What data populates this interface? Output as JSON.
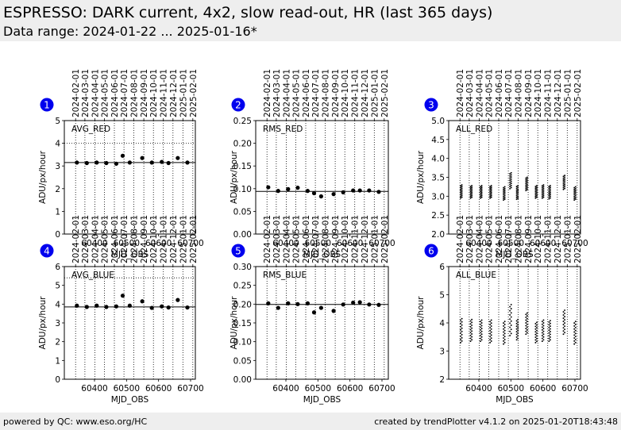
{
  "header": {
    "title": "ESPRESSO: DARK current, 4x2, slow read-out, HR (last 365 days)",
    "subtitle": "Data range: 2024-01-22 ... 2025-01-16*"
  },
  "footer": {
    "left": "powered by QC: www.eso.org/HC",
    "right": "created by trendPlotter v4.1.2 on 2025-01-20T18:43:48"
  },
  "colors": {
    "badge": "#0000ee",
    "points": "#000000",
    "background_band": "#eeeeee"
  },
  "date_ticks": [
    "2024-02-01",
    "2024-03-01",
    "2024-04-01",
    "2024-05-01",
    "2024-06-01",
    "2024-07-01",
    "2024-08-01",
    "2024-09-01",
    "2024-10-01",
    "2024-11-01",
    "2024-12-01",
    "2025-01-01",
    "2025-02-01"
  ],
  "chart_data": [
    {
      "id": "1",
      "type": "scatter",
      "label": "AVG_RED",
      "xlabel": "MJD_OBS",
      "ylabel": "ADU/px/hour",
      "xticks": [
        "60400",
        "60500",
        "60600",
        "60700"
      ],
      "yticks": [
        "0",
        "1",
        "2",
        "3",
        "4",
        "5"
      ],
      "ylim": [
        0,
        5
      ],
      "reference": 3.15,
      "upper_dotted": 4.0,
      "x": [
        60345,
        60376,
        60407,
        60437,
        60468,
        60488,
        60510,
        60549,
        60579,
        60610,
        60631,
        60660,
        60690
      ],
      "y": [
        3.15,
        3.13,
        3.15,
        3.13,
        3.1,
        3.45,
        3.15,
        3.35,
        3.15,
        3.18,
        3.13,
        3.35,
        3.15
      ]
    },
    {
      "id": "2",
      "type": "scatter",
      "label": "RMS_RED",
      "xlabel": "MJD_OBS",
      "ylabel": "ADU/px/hour",
      "xticks": [
        "60400",
        "60500",
        "60600",
        "60700"
      ],
      "yticks": [
        "0.00",
        "0.05",
        "0.10",
        "0.15",
        "0.20",
        "0.25"
      ],
      "ylim": [
        0,
        0.25
      ],
      "reference": 0.094,
      "x": [
        60345,
        60376,
        60407,
        60437,
        60468,
        60488,
        60510,
        60549,
        60579,
        60610,
        60631,
        60660,
        60690
      ],
      "y": [
        0.103,
        0.095,
        0.099,
        0.102,
        0.095,
        0.09,
        0.083,
        0.088,
        0.092,
        0.096,
        0.096,
        0.096,
        0.093
      ]
    },
    {
      "id": "3",
      "type": "scatter",
      "label": "ALL_RED",
      "xlabel": "MJD_OBS",
      "ylabel": "ADU/px/hour",
      "xticks": [
        "60400",
        "60500",
        "60600",
        "60700"
      ],
      "yticks": [
        "2.0",
        "2.5",
        "3.0",
        "3.5",
        "4.0",
        "4.5",
        "5.0"
      ],
      "ylim": [
        2.0,
        5.0
      ],
      "columns": [
        {
          "x": 60345,
          "min": 2.95,
          "max": 3.3
        },
        {
          "x": 60376,
          "min": 2.95,
          "max": 3.28
        },
        {
          "x": 60407,
          "min": 2.95,
          "max": 3.28
        },
        {
          "x": 60437,
          "min": 2.95,
          "max": 3.28
        },
        {
          "x": 60479,
          "min": 2.9,
          "max": 3.25
        },
        {
          "x": 60499,
          "min": 3.2,
          "max": 3.62
        },
        {
          "x": 60520,
          "min": 2.92,
          "max": 3.28
        },
        {
          "x": 60549,
          "min": 3.15,
          "max": 3.5
        },
        {
          "x": 60579,
          "min": 2.95,
          "max": 3.28
        },
        {
          "x": 60600,
          "min": 2.95,
          "max": 3.3
        },
        {
          "x": 60621,
          "min": 2.93,
          "max": 3.28
        },
        {
          "x": 60666,
          "min": 3.18,
          "max": 3.55
        },
        {
          "x": 60700,
          "min": 2.9,
          "max": 3.25
        }
      ]
    },
    {
      "id": "4",
      "type": "scatter",
      "label": "AVG_BLUE",
      "xlabel": "MJD_OBS",
      "ylabel": "ADU/px/hour",
      "xticks": [
        "60400",
        "60500",
        "60600",
        "60700"
      ],
      "yticks": [
        "0",
        "1",
        "2",
        "3",
        "4",
        "5",
        "6"
      ],
      "ylim": [
        0,
        6
      ],
      "reference": 3.85,
      "upper_dotted": 5.4,
      "x": [
        60345,
        60376,
        60407,
        60437,
        60468,
        60488,
        60510,
        60549,
        60579,
        60610,
        60631,
        60660,
        60690
      ],
      "y": [
        3.92,
        3.85,
        3.92,
        3.85,
        3.88,
        4.45,
        3.92,
        4.15,
        3.8,
        3.88,
        3.82,
        4.22,
        3.82
      ]
    },
    {
      "id": "5",
      "type": "scatter",
      "label": "RMS_BLUE",
      "xlabel": "MJD_OBS",
      "ylabel": "ADU/px/hour",
      "xticks": [
        "60400",
        "60500",
        "60600",
        "60700"
      ],
      "yticks": [
        "0.00",
        "0.05",
        "0.10",
        "0.15",
        "0.20",
        "0.25",
        "0.30"
      ],
      "ylim": [
        0,
        0.3
      ],
      "reference": 0.199,
      "x": [
        60345,
        60376,
        60407,
        60437,
        60468,
        60488,
        60510,
        60549,
        60579,
        60610,
        60631,
        60660,
        60690
      ],
      "y": [
        0.202,
        0.19,
        0.202,
        0.2,
        0.202,
        0.178,
        0.19,
        0.182,
        0.199,
        0.204,
        0.205,
        0.199,
        0.198
      ]
    },
    {
      "id": "6",
      "type": "scatter",
      "label": "ALL_BLUE",
      "xlabel": "MJD_OBS",
      "ylabel": "ADU/px/hour",
      "xticks": [
        "60400",
        "60500",
        "60600",
        "60700"
      ],
      "yticks": [
        "2",
        "3",
        "4",
        "5",
        "6"
      ],
      "ylim": [
        2,
        6
      ],
      "columns": [
        {
          "x": 60345,
          "min": 3.3,
          "max": 4.15
        },
        {
          "x": 60376,
          "min": 3.35,
          "max": 4.12
        },
        {
          "x": 60407,
          "min": 3.35,
          "max": 4.1
        },
        {
          "x": 60437,
          "min": 3.3,
          "max": 4.1
        },
        {
          "x": 60479,
          "min": 3.25,
          "max": 4.05
        },
        {
          "x": 60499,
          "min": 3.55,
          "max": 4.65
        },
        {
          "x": 60520,
          "min": 3.4,
          "max": 4.12
        },
        {
          "x": 60549,
          "min": 3.6,
          "max": 4.35
        },
        {
          "x": 60579,
          "min": 3.3,
          "max": 4.02
        },
        {
          "x": 60600,
          "min": 3.35,
          "max": 4.1
        },
        {
          "x": 60621,
          "min": 3.35,
          "max": 4.08
        },
        {
          "x": 60666,
          "min": 3.6,
          "max": 4.45
        },
        {
          "x": 60700,
          "min": 3.25,
          "max": 4.05
        }
      ]
    }
  ]
}
